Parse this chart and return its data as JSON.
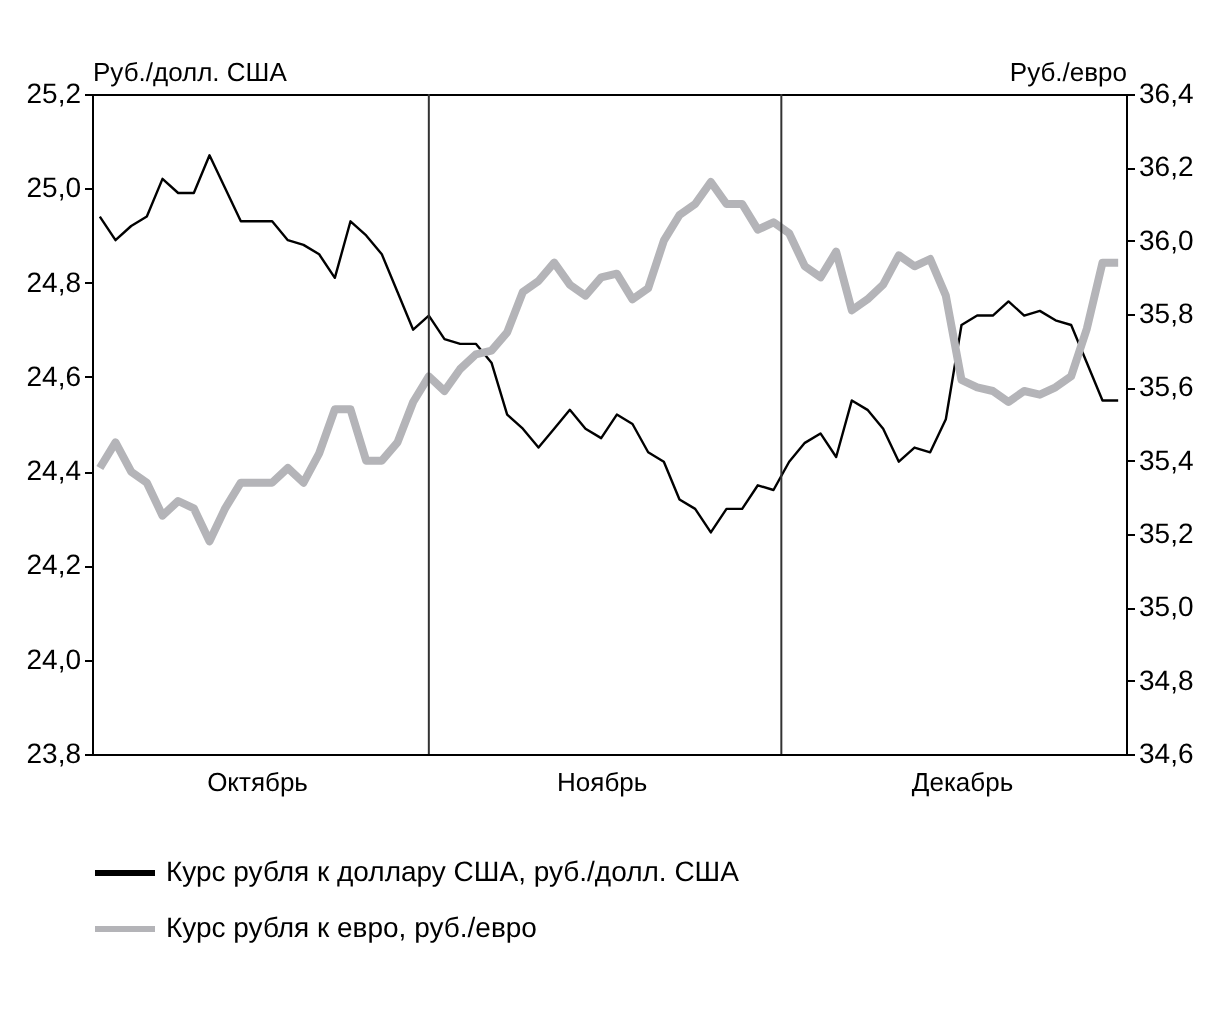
{
  "chart_data": {
    "type": "line",
    "ylabel": "Руб./долл. США",
    "y2label": "Руб./евро",
    "categories": [
      null,
      null,
      null,
      null,
      null,
      null,
      null,
      null,
      null,
      null,
      "Октябрь",
      null,
      null,
      null,
      null,
      null,
      null,
      null,
      null,
      null,
      null,
      null,
      null,
      null,
      null,
      null,
      null,
      null,
      null,
      null,
      null,
      null,
      "Ноябрь",
      null,
      null,
      null,
      null,
      null,
      null,
      null,
      null,
      null,
      null,
      null,
      null,
      null,
      null,
      null,
      null,
      null,
      null,
      null,
      null,
      null,
      null,
      "Декабрь",
      null,
      null,
      null,
      null,
      null,
      null,
      null,
      null,
      null,
      null
    ],
    "ylim": [
      23.8,
      25.2
    ],
    "yticks": [
      {
        "value": 23.8,
        "label": "23,8"
      },
      {
        "value": 24.0,
        "label": "24,0"
      },
      {
        "value": 24.2,
        "label": "24,2"
      },
      {
        "value": 24.4,
        "label": "24,4"
      },
      {
        "value": 24.6,
        "label": "24,6"
      },
      {
        "value": 24.8,
        "label": "24,8"
      },
      {
        "value": 25.0,
        "label": "25,0"
      },
      {
        "value": 25.2,
        "label": "25,2"
      }
    ],
    "y2lim": [
      34.6,
      36.4
    ],
    "y2ticks": [
      {
        "value": 34.6,
        "label": "34,6"
      },
      {
        "value": 34.8,
        "label": "34,8"
      },
      {
        "value": 35.0,
        "label": "35,0"
      },
      {
        "value": 35.2,
        "label": "35,2"
      },
      {
        "value": 35.4,
        "label": "35,4"
      },
      {
        "value": 35.6,
        "label": "35,6"
      },
      {
        "value": 35.8,
        "label": "35,8"
      },
      {
        "value": 36.0,
        "label": "36,0"
      },
      {
        "value": 36.2,
        "label": "36,2"
      },
      {
        "value": 36.4,
        "label": "36,4"
      }
    ],
    "legend": "bottom",
    "grid": false,
    "series": [
      {
        "name": "Курс рубля к доллару США, руб./долл. США",
        "color": "#000000",
        "values": [
          24.94,
          24.89,
          24.92,
          24.94,
          25.02,
          24.99,
          24.99,
          25.07,
          25.0,
          24.93,
          24.93,
          24.93,
          24.89,
          24.88,
          24.86,
          24.81,
          24.93,
          24.9,
          24.86,
          24.78,
          24.7,
          24.73,
          24.68,
          24.67,
          24.67,
          24.63,
          24.52,
          24.49,
          24.45,
          24.49,
          24.53,
          24.49,
          24.47,
          24.52,
          24.5,
          24.44,
          24.42,
          24.34,
          24.32,
          24.27,
          24.32,
          24.32,
          24.37,
          24.36,
          24.42,
          24.46,
          24.48,
          24.43,
          24.55,
          24.53,
          24.49,
          24.42,
          24.45,
          24.44,
          24.51,
          24.71,
          24.73,
          24.73,
          24.76,
          24.73,
          24.74,
          24.72,
          24.71,
          24.63,
          24.55,
          24.55
        ]
      },
      {
        "name": "Курс рубля к евро, руб./евро",
        "color": "#b4b4b8",
        "axis": "y2",
        "values": [
          35.38,
          35.45,
          35.37,
          35.34,
          35.25,
          35.29,
          35.27,
          35.18,
          35.27,
          35.34,
          35.34,
          35.34,
          35.38,
          35.34,
          35.42,
          35.54,
          35.54,
          35.4,
          35.4,
          35.45,
          35.56,
          35.63,
          35.59,
          35.65,
          35.69,
          35.7,
          35.75,
          35.86,
          35.89,
          35.94,
          35.88,
          35.85,
          35.9,
          35.91,
          35.84,
          35.87,
          36.0,
          36.07,
          36.1,
          36.16,
          36.1,
          36.1,
          36.03,
          36.05,
          36.02,
          35.93,
          35.9,
          35.97,
          35.81,
          35.84,
          35.88,
          35.96,
          35.93,
          35.95,
          35.85,
          35.62,
          35.6,
          35.59,
          35.56,
          35.59,
          35.58,
          35.6,
          35.63,
          35.76,
          35.94,
          35.94
        ]
      }
    ]
  }
}
